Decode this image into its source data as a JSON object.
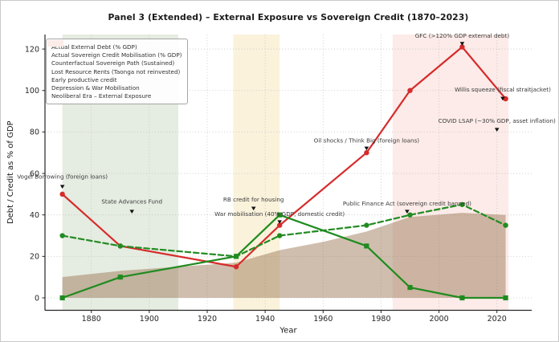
{
  "chart_data": {
    "type": "line",
    "title": "Panel 3 (Extended) – External Exposure vs Sovereign Credit (1870–2023)",
    "xlabel": "Year",
    "ylabel": "Debt / Credit as % of GDP",
    "xlim": [
      1864,
      2032
    ],
    "ylim": [
      -6,
      127
    ],
    "xticks": [
      1880,
      1900,
      1920,
      1940,
      1960,
      1980,
      2000,
      2020
    ],
    "yticks": [
      0,
      20,
      40,
      60,
      80,
      100,
      120
    ],
    "grid": true,
    "legend_position": "upper-left",
    "x": [
      1870,
      1890,
      1930,
      1945,
      1975,
      1990,
      2008,
      2023
    ],
    "series": [
      {
        "name": "Actual External Debt (% GDP)",
        "color": "#d62b2b",
        "dash": "solid",
        "marker": "circle",
        "values": [
          50,
          25,
          15,
          35,
          70,
          100,
          121,
          96
        ]
      },
      {
        "name": "Actual Sovereign Credit Mobilisation (% GDP)",
        "color": "#1f8b1f",
        "dash": "solid",
        "marker": "square",
        "values": [
          0,
          10,
          20,
          40,
          25,
          5,
          0,
          0
        ]
      },
      {
        "name": "Counterfactual Sovereign Path (Sustained)",
        "color": "#228B22",
        "dash": "dashed",
        "marker": "circle",
        "values": [
          30,
          25,
          20,
          30,
          35,
          40,
          45,
          35
        ]
      }
    ],
    "area": {
      "name": "Lost Resource Rents (Taonga not reinvested)",
      "color": "rgba(148,110,75,0.45)",
      "x": [
        1870,
        1890,
        1910,
        1930,
        1945,
        1960,
        1975,
        1990,
        2008,
        2023
      ],
      "values": [
        10,
        13,
        15,
        17,
        23,
        27,
        32,
        39,
        41,
        40
      ],
      "baseline": 0
    },
    "spans": [
      {
        "name": "Early productive credit",
        "from": 1870,
        "to": 1910,
        "color": "#e5ece1"
      },
      {
        "name": "Depression & War Mobilisation",
        "from": 1929,
        "to": 1945,
        "color": "#faf2db"
      },
      {
        "name": "Neoliberal Era – External Exposure",
        "from": 1984,
        "to": 2024,
        "color": "#fcebe8"
      }
    ],
    "annotations": [
      {
        "text": "Vogel Borrowing (foreign loans)",
        "year": 1870,
        "text_value": 57.5,
        "marker_value": 53.5
      },
      {
        "text": "State Advances Fund",
        "year": 1894,
        "text_value": 45.5,
        "marker_value": 41.5
      },
      {
        "text": "RB credit for housing",
        "year": 1936,
        "text_value": 46.5,
        "marker_value": 43
      },
      {
        "text": "War mobilisation (40% GDP, domestic credit)",
        "year": 1945,
        "text_value": 39.5,
        "marker_value": 36.5
      },
      {
        "text": "Oil shocks / Think Big (foreign loans)",
        "year": 1975,
        "text_value": 75,
        "marker_value": 72
      },
      {
        "text": "Public Finance Act (sovereign credit banned)",
        "year": 1989,
        "text_value": 44.5,
        "marker_value": 41.5
      },
      {
        "text": "GFC (>120% GDP external debt)",
        "year": 2008,
        "text_value": 125.5,
        "marker_value": 122.5
      },
      {
        "text": "COVID LSAP (~30% GDP, asset inflation)",
        "year": 2020,
        "text_value": 84.5,
        "marker_value": 81
      },
      {
        "text": "Willis squeeze (fiscal straitjacket)",
        "year": 2022,
        "text_value": 99.5,
        "marker_value": 96
      }
    ],
    "legend": {
      "entries": [
        {
          "label": "Actual External Debt (% GDP)",
          "swatch": "line",
          "color": "#d62b2b",
          "marker": "circle"
        },
        {
          "label": "Actual Sovereign Credit Mobilisation (% GDP)",
          "swatch": "line",
          "color": "#1f8b1f",
          "marker": "square"
        },
        {
          "label": "Counterfactual Sovereign Path (Sustained)",
          "swatch": "dashed-line",
          "color": "#228B22",
          "marker": "circle"
        },
        {
          "label": "Lost Resource Rents (Taonga not reinvested)",
          "swatch": "patch",
          "color": "#cdb198"
        },
        {
          "label": "Early productive credit",
          "swatch": "patch",
          "color": "#e5ece1"
        },
        {
          "label": "Depression & War Mobilisation",
          "swatch": "patch",
          "color": "#faf2db"
        },
        {
          "label": "Neoliberal Era – External Exposure",
          "swatch": "patch",
          "color": "#fcebe8"
        }
      ]
    },
    "colors": {
      "grid": "#c2c2c2",
      "spine": "#262626",
      "tick_label": "#262626",
      "annotation_text": "#3a3a3a",
      "annotation_marker": "#111111"
    }
  }
}
